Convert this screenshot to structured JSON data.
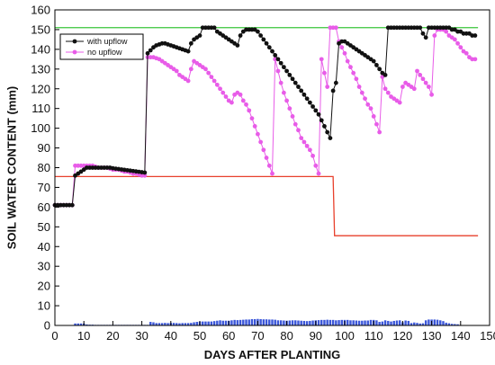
{
  "chart_data": {
    "type": "line",
    "title": "",
    "xlabel": "DAYS AFTER PLANTING",
    "ylabel": "SOIL WATER CONTENT (mm)",
    "xlim": [
      0,
      150
    ],
    "ylim": [
      0,
      160
    ],
    "xticks": [
      0,
      10,
      20,
      30,
      40,
      50,
      60,
      70,
      80,
      90,
      100,
      110,
      120,
      130,
      140,
      150
    ],
    "yticks": [
      0,
      10,
      20,
      30,
      40,
      50,
      60,
      70,
      80,
      90,
      100,
      110,
      120,
      130,
      140,
      150,
      160
    ],
    "grid": false,
    "legend_position": "top-left",
    "legend": [
      "with upflow",
      "no upflow"
    ],
    "colors": {
      "with_upflow": "#111111",
      "no_upflow": "#e85ce8",
      "field_capacity": "#39c43a",
      "threshold": "#e8402c",
      "bars": "#3b57d9",
      "axes": "#000000"
    },
    "field_capacity_line": {
      "y": 151
    },
    "threshold_line": {
      "points": [
        [
          0,
          75.5
        ],
        [
          96,
          75.5
        ],
        [
          96.5,
          45.5
        ],
        [
          146,
          45.5
        ]
      ]
    },
    "bar_series": {
      "x_start": 7,
      "values": [
        1,
        1,
        1,
        1,
        0.5,
        0.4,
        0.4,
        0.3,
        0.3,
        0.3,
        0.3,
        0.3,
        0.3,
        0.3,
        0.3,
        0.3,
        0.3,
        0.3,
        0.3,
        0.3,
        0.3,
        0.3,
        0.3,
        0.3,
        0.3,
        0.3,
        1.8,
        1.6,
        1.2,
        1.2,
        1.2,
        1.3,
        1.2,
        1.3,
        1.3,
        1.2,
        1.1,
        1.2,
        1.2,
        1.2,
        1.3,
        1.6,
        1.8,
        1.9,
        2,
        2,
        2,
        2,
        2.2,
        2.4,
        2.6,
        2.4,
        2.4,
        2.4,
        2.6,
        2.8,
        2.7,
        2.8,
        2.9,
        3,
        3,
        3.2,
        3.2,
        3.3,
        3.2,
        3.1,
        3.1,
        3,
        3,
        2.9,
        2.6,
        2.6,
        2.5,
        2.4,
        2.5,
        2.6,
        2.6,
        2.5,
        2.4,
        2.3,
        2.2,
        2.3,
        2.5,
        2.6,
        2.7,
        2.8,
        2.8,
        2.9,
        2.8,
        2.8,
        2.6,
        2.7,
        2.8,
        2.8,
        2.8,
        2.6,
        2.6,
        2.5,
        2.4,
        2.4,
        2.5,
        2.5,
        2.8,
        2.8,
        2.6,
        1.8,
        2,
        2.6,
        2.3,
        2,
        2.3,
        2.5,
        2.6,
        1.6,
        2.5,
        2.3,
        1.2,
        1.5,
        1.3,
        1,
        1.1,
        2.6,
        3,
        3,
        3,
        2.9,
        2.6,
        2.2,
        1.4,
        1.1,
        0.8,
        0.7,
        0.6
      ]
    },
    "series": [
      {
        "name": "with upflow",
        "marker": "circle",
        "points": [
          [
            0,
            61
          ],
          [
            1,
            61
          ],
          [
            2,
            61
          ],
          [
            3,
            61
          ],
          [
            4,
            61
          ],
          [
            5,
            61
          ],
          [
            6,
            61
          ],
          [
            7,
            76
          ],
          [
            8,
            77
          ],
          [
            9,
            78
          ],
          [
            10,
            79
          ],
          [
            11,
            80
          ],
          [
            12,
            80
          ],
          [
            13,
            80
          ],
          [
            14,
            80
          ],
          [
            15,
            80
          ],
          [
            16,
            80
          ],
          [
            17,
            80
          ],
          [
            18,
            80
          ],
          [
            19,
            80
          ],
          [
            20,
            79.7
          ],
          [
            21,
            79.5
          ],
          [
            22,
            79.3
          ],
          [
            23,
            79.1
          ],
          [
            24,
            78.9
          ],
          [
            25,
            78.7
          ],
          [
            26,
            78.5
          ],
          [
            27,
            78.3
          ],
          [
            28,
            78.1
          ],
          [
            29,
            77.9
          ],
          [
            30,
            77.7
          ],
          [
            31,
            77.5
          ],
          [
            32,
            138
          ],
          [
            33,
            139.5
          ],
          [
            34,
            141
          ],
          [
            35,
            142
          ],
          [
            36,
            142.5
          ],
          [
            37,
            143
          ],
          [
            38,
            143
          ],
          [
            39,
            142.5
          ],
          [
            40,
            142
          ],
          [
            41,
            141.5
          ],
          [
            42,
            141
          ],
          [
            43,
            140.5
          ],
          [
            44,
            140
          ],
          [
            45,
            139.5
          ],
          [
            46,
            139
          ],
          [
            47,
            143
          ],
          [
            48,
            145
          ],
          [
            49,
            146
          ],
          [
            50,
            147
          ],
          [
            51,
            151
          ],
          [
            52,
            151
          ],
          [
            53,
            151
          ],
          [
            54,
            151
          ],
          [
            55,
            151
          ],
          [
            56,
            149
          ],
          [
            57,
            148
          ],
          [
            58,
            147
          ],
          [
            59,
            146
          ],
          [
            60,
            145
          ],
          [
            61,
            144
          ],
          [
            62,
            143
          ],
          [
            63,
            142
          ],
          [
            64,
            147
          ],
          [
            65,
            149
          ],
          [
            66,
            150
          ],
          [
            67,
            150
          ],
          [
            68,
            150
          ],
          [
            69,
            150
          ],
          [
            70,
            149
          ],
          [
            71,
            147
          ],
          [
            72,
            145
          ],
          [
            73,
            143
          ],
          [
            74,
            141
          ],
          [
            75,
            139
          ],
          [
            76,
            137
          ],
          [
            77,
            135
          ],
          [
            78,
            133
          ],
          [
            79,
            131
          ],
          [
            80,
            129
          ],
          [
            81,
            127
          ],
          [
            82,
            125
          ],
          [
            83,
            123
          ],
          [
            84,
            121
          ],
          [
            85,
            119
          ],
          [
            86,
            117
          ],
          [
            87,
            115
          ],
          [
            88,
            113
          ],
          [
            89,
            111
          ],
          [
            90,
            109
          ],
          [
            91,
            107
          ],
          [
            92,
            104
          ],
          [
            93,
            101
          ],
          [
            94,
            98
          ],
          [
            95,
            95
          ],
          [
            96,
            119
          ],
          [
            97,
            123
          ],
          [
            98,
            143
          ],
          [
            99,
            144
          ],
          [
            100,
            144
          ],
          [
            101,
            143
          ],
          [
            102,
            142
          ],
          [
            103,
            141
          ],
          [
            104,
            140
          ],
          [
            105,
            139
          ],
          [
            106,
            138
          ],
          [
            107,
            137
          ],
          [
            108,
            136
          ],
          [
            109,
            135
          ],
          [
            110,
            134
          ],
          [
            111,
            132
          ],
          [
            112,
            130
          ],
          [
            113,
            128
          ],
          [
            114,
            127
          ],
          [
            115,
            151
          ],
          [
            116,
            151
          ],
          [
            117,
            151
          ],
          [
            118,
            151
          ],
          [
            119,
            151
          ],
          [
            120,
            151
          ],
          [
            121,
            151
          ],
          [
            122,
            151
          ],
          [
            123,
            151
          ],
          [
            124,
            151
          ],
          [
            125,
            151
          ],
          [
            126,
            151
          ],
          [
            127,
            148
          ],
          [
            128,
            146
          ],
          [
            129,
            151
          ],
          [
            130,
            151
          ],
          [
            131,
            151
          ],
          [
            132,
            151
          ],
          [
            133,
            151
          ],
          [
            134,
            151
          ],
          [
            135,
            151
          ],
          [
            136,
            151
          ],
          [
            137,
            150
          ],
          [
            138,
            150
          ],
          [
            139,
            149
          ],
          [
            140,
            149
          ],
          [
            141,
            148
          ],
          [
            142,
            148
          ],
          [
            143,
            148
          ],
          [
            144,
            147
          ],
          [
            145,
            147
          ]
        ]
      },
      {
        "name": "no upflow",
        "marker": "circle",
        "points": [
          [
            0,
            61
          ],
          [
            1,
            61
          ],
          [
            2,
            61
          ],
          [
            3,
            61
          ],
          [
            4,
            61
          ],
          [
            5,
            61
          ],
          [
            6,
            61
          ],
          [
            7,
            81
          ],
          [
            8,
            81
          ],
          [
            9,
            81
          ],
          [
            10,
            81
          ],
          [
            11,
            81
          ],
          [
            12,
            81
          ],
          [
            13,
            81
          ],
          [
            14,
            80.5
          ],
          [
            15,
            80
          ],
          [
            16,
            80
          ],
          [
            17,
            80
          ],
          [
            18,
            80
          ],
          [
            19,
            79.5
          ],
          [
            20,
            79
          ],
          [
            21,
            79
          ],
          [
            22,
            79
          ],
          [
            23,
            78.5
          ],
          [
            24,
            78
          ],
          [
            25,
            78
          ],
          [
            26,
            77.5
          ],
          [
            27,
            77
          ],
          [
            28,
            77
          ],
          [
            29,
            76.5
          ],
          [
            30,
            76
          ],
          [
            31,
            76
          ],
          [
            32,
            136
          ],
          [
            33,
            136
          ],
          [
            34,
            136
          ],
          [
            35,
            135.5
          ],
          [
            36,
            135
          ],
          [
            37,
            134
          ],
          [
            38,
            133
          ],
          [
            39,
            132
          ],
          [
            40,
            131
          ],
          [
            41,
            130
          ],
          [
            42,
            129
          ],
          [
            43,
            127
          ],
          [
            44,
            126
          ],
          [
            45,
            125
          ],
          [
            46,
            124
          ],
          [
            47,
            130
          ],
          [
            48,
            134
          ],
          [
            49,
            133
          ],
          [
            50,
            132
          ],
          [
            51,
            131
          ],
          [
            52,
            130
          ],
          [
            53,
            128
          ],
          [
            54,
            126
          ],
          [
            55,
            124
          ],
          [
            56,
            122
          ],
          [
            57,
            120
          ],
          [
            58,
            118
          ],
          [
            59,
            116
          ],
          [
            60,
            114
          ],
          [
            61,
            113
          ],
          [
            62,
            117
          ],
          [
            63,
            118
          ],
          [
            64,
            117
          ],
          [
            65,
            114
          ],
          [
            66,
            112
          ],
          [
            67,
            109
          ],
          [
            68,
            105
          ],
          [
            69,
            101
          ],
          [
            70,
            97
          ],
          [
            71,
            93
          ],
          [
            72,
            89
          ],
          [
            73,
            85
          ],
          [
            74,
            81
          ],
          [
            75,
            77
          ],
          [
            76,
            135
          ],
          [
            77,
            129
          ],
          [
            78,
            123
          ],
          [
            79,
            118
          ],
          [
            80,
            114
          ],
          [
            81,
            110
          ],
          [
            82,
            106
          ],
          [
            83,
            102
          ],
          [
            84,
            99
          ],
          [
            85,
            95
          ],
          [
            86,
            93
          ],
          [
            87,
            91
          ],
          [
            88,
            89
          ],
          [
            89,
            86
          ],
          [
            90,
            81
          ],
          [
            91,
            77
          ],
          [
            92,
            135
          ],
          [
            93,
            128
          ],
          [
            94,
            121
          ],
          [
            95,
            151
          ],
          [
            96,
            151
          ],
          [
            97,
            151
          ],
          [
            98,
            144
          ],
          [
            99,
            141
          ],
          [
            100,
            138
          ],
          [
            101,
            134
          ],
          [
            102,
            131
          ],
          [
            103,
            128
          ],
          [
            104,
            125
          ],
          [
            105,
            121
          ],
          [
            106,
            118
          ],
          [
            107,
            115
          ],
          [
            108,
            112
          ],
          [
            109,
            110
          ],
          [
            110,
            106
          ],
          [
            111,
            102
          ],
          [
            112,
            98
          ],
          [
            113,
            126
          ],
          [
            114,
            120
          ],
          [
            115,
            118
          ],
          [
            116,
            116
          ],
          [
            117,
            115
          ],
          [
            118,
            114
          ],
          [
            119,
            113
          ],
          [
            120,
            121
          ],
          [
            121,
            123
          ],
          [
            122,
            122
          ],
          [
            123,
            121
          ],
          [
            124,
            120
          ],
          [
            125,
            129
          ],
          [
            126,
            127
          ],
          [
            127,
            125
          ],
          [
            128,
            123
          ],
          [
            129,
            121
          ],
          [
            130,
            117
          ],
          [
            131,
            147
          ],
          [
            132,
            150
          ],
          [
            133,
            150
          ],
          [
            134,
            150
          ],
          [
            135,
            149
          ],
          [
            136,
            147
          ],
          [
            137,
            146
          ],
          [
            138,
            145
          ],
          [
            139,
            143
          ],
          [
            140,
            141
          ],
          [
            141,
            139
          ],
          [
            142,
            138
          ],
          [
            143,
            136
          ],
          [
            144,
            135
          ],
          [
            145,
            135
          ]
        ]
      }
    ]
  }
}
